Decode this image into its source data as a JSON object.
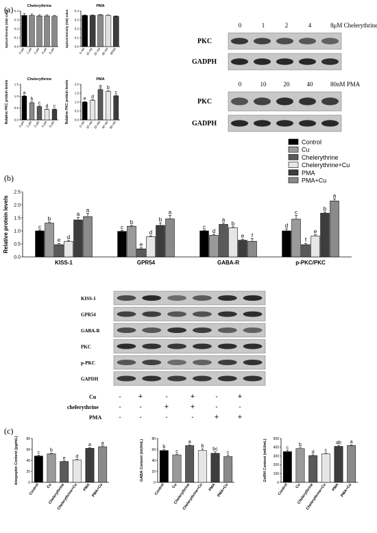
{
  "panel_labels": {
    "a": "(a)",
    "b": "(b)",
    "c": "(c)"
  },
  "colors": {
    "Control": "#000000",
    "Cu": "#9a9a9a",
    "Chelerythrine": "#5a5a5a",
    "Chelerythrine+Cu": "#e6e6e6",
    "PMA": "#3d3d3d",
    "PMA+Cu": "#8a8a8a"
  },
  "blots": {
    "chelerythrine": {
      "doses": [
        "0",
        "1",
        "2",
        "4",
        "8μM Chelerythrine"
      ],
      "rows": [
        "PKC",
        "GADPH"
      ]
    },
    "pma": {
      "doses": [
        "0",
        "10",
        "20",
        "40",
        "80nM PMA"
      ],
      "rows": [
        "PKC",
        "GADPH"
      ]
    },
    "b_rows": [
      "KISS-1",
      "GPR54",
      "GABA-R",
      "PKC",
      "p-PKC",
      "GAPDH"
    ],
    "treatment_table": {
      "rows": [
        {
          "label": "Cu",
          "signs": [
            "-",
            "+",
            "-",
            "+",
            "-",
            "+"
          ]
        },
        {
          "label": "chelerythrine",
          "signs": [
            "-",
            "-",
            "+",
            "+",
            "-",
            "-"
          ]
        },
        {
          "label": "PMA",
          "signs": [
            "-",
            "-",
            "-",
            "-",
            "+",
            "+"
          ]
        }
      ]
    }
  },
  "chart_data": [
    {
      "id": "a1",
      "type": "bar",
      "title": "Chelerythrine",
      "ylabel": "Optical Density (OD) value",
      "categories": [
        "0 μM",
        "1 μM",
        "2 μM",
        "4 μM",
        "8 μM"
      ],
      "values": [
        0.35,
        0.35,
        0.345,
        0.345,
        0.34
      ],
      "errors": [
        0.02,
        0.015,
        0.01,
        0.01,
        0.01
      ],
      "colors": [
        "#000000",
        "#8a8a8a",
        "#8a8a8a",
        "#8a8a8a",
        "#8a8a8a"
      ],
      "ylim": [
        0,
        0.4
      ],
      "yticks": [
        "0.0",
        "0.1",
        "0.2",
        "0.3",
        "0.4"
      ],
      "yticks_val": [
        0,
        0.1,
        0.2,
        0.3,
        0.4
      ],
      "letters": []
    },
    {
      "id": "a2",
      "type": "bar",
      "title": "PMA",
      "ylabel": "Optical Density (OD) value",
      "categories": [
        "0 nM",
        "10 nM",
        "20 nM",
        "40 nM",
        "80nM"
      ],
      "values": [
        0.35,
        0.35,
        0.355,
        0.35,
        0.34
      ],
      "errors": [
        0.005,
        0.005,
        0.005,
        0.005,
        0.005
      ],
      "colors": [
        "#000000",
        "#3d3d3d",
        "#8a8a8a",
        "#e0e0e0",
        "#3d3d3d"
      ],
      "ylim": [
        0,
        0.4
      ],
      "yticks": [
        "0.0",
        "0.1",
        "0.2",
        "0.3",
        "0.4"
      ],
      "yticks_val": [
        0,
        0.1,
        0.2,
        0.3,
        0.4
      ],
      "letters": []
    },
    {
      "id": "a3",
      "type": "bar",
      "title": "Chelerythrine",
      "ylabel": "Relative PKC protein levels",
      "categories": [
        "0 μM",
        "1 μM",
        "2 μM",
        "4 μM",
        "8 μM"
      ],
      "values": [
        1.0,
        0.72,
        0.56,
        0.44,
        0.44
      ],
      "errors": [
        0.03,
        0.04,
        0.03,
        0.02,
        0.02
      ],
      "colors": [
        "#000000",
        "#8a8a8a",
        "#5a5a5a",
        "#e6e6e6",
        "#3d3d3d"
      ],
      "ylim": [
        0,
        1.5
      ],
      "yticks": [
        "0.0",
        "0.5",
        "1.0",
        "1.5"
      ],
      "yticks_val": [
        0,
        0.5,
        1.0,
        1.5
      ],
      "letters": [
        "a",
        "b",
        "c",
        "d",
        "c"
      ]
    },
    {
      "id": "a4",
      "type": "bar",
      "title": "PMA",
      "ylabel": "Relative PKC protein levels",
      "categories": [
        "0 nM",
        "10 nM",
        "20 nM",
        "40 nM",
        "80 nM"
      ],
      "values": [
        1.0,
        1.1,
        1.7,
        1.6,
        1.35
      ],
      "errors": [
        0.03,
        0.04,
        0.04,
        0.05,
        0.04
      ],
      "colors": [
        "#000000",
        "#e6e6e6",
        "#5a5a5a",
        "#e6e6e6",
        "#3d3d3d"
      ],
      "ylim": [
        0,
        2.0
      ],
      "yticks": [
        "0.0",
        "0.5",
        "1.0",
        "1.5",
        "2.0"
      ],
      "yticks_val": [
        0,
        0.5,
        1.0,
        1.5,
        2.0
      ],
      "letters": [
        "e",
        "d",
        "a",
        "b",
        "c"
      ]
    },
    {
      "id": "b",
      "type": "bar",
      "ylabel": "Relative protein levels",
      "categories": [
        "KISS-1",
        "GPR54",
        "GABA-R",
        "p-PKC/PKC"
      ],
      "ylim": [
        0,
        2.5
      ],
      "yticks": [
        "0.0",
        "0.5",
        "1.0",
        "1.5",
        "2.0",
        "2.5"
      ],
      "yticks_val": [
        0,
        0.5,
        1.0,
        1.5,
        2.0,
        2.5
      ],
      "legend": [
        "Control",
        "Cu",
        "Chelerythrine",
        "Chelerythrine+Cu",
        "PMA",
        "PMA+Cu"
      ],
      "legend_position": "top-right",
      "series": [
        {
          "name": "Control",
          "values": [
            1.0,
            0.98,
            1.0,
            1.0
          ],
          "errors": [
            0.03,
            0.03,
            0.03,
            0.08
          ]
        },
        {
          "name": "Cu",
          "values": [
            1.3,
            1.18,
            0.83,
            1.45
          ],
          "errors": [
            0.04,
            0.03,
            0.04,
            0.14
          ]
        },
        {
          "name": "Chelerythrine",
          "values": [
            0.47,
            0.31,
            1.25,
            0.47
          ],
          "errors": [
            0.05,
            0.04,
            0.05,
            0.05
          ]
        },
        {
          "name": "Chelerythrine+Cu",
          "values": [
            0.6,
            0.78,
            1.12,
            0.8
          ],
          "errors": [
            0.03,
            0.03,
            0.04,
            0.05
          ]
        },
        {
          "name": "PMA",
          "values": [
            1.42,
            1.21,
            0.64,
            1.68
          ],
          "errors": [
            0.1,
            0.1,
            0.04,
            0.04
          ]
        },
        {
          "name": "PMA+Cu",
          "values": [
            1.55,
            1.46,
            0.6,
            2.15
          ],
          "errors": [
            0.12,
            0.13,
            0.1,
            0.08
          ]
        }
      ],
      "letters": [
        [
          "c",
          "b",
          "e",
          "d",
          "a",
          "a"
        ],
        [
          "c",
          "b",
          "e",
          "d",
          "b",
          "a"
        ],
        [
          "c",
          "d",
          "a",
          "b",
          "e",
          "f"
        ],
        [
          "d",
          "c",
          "f",
          "e",
          "b",
          "a"
        ]
      ]
    },
    {
      "id": "c1",
      "type": "bar",
      "ylabel": "kisspeptin Content (pg/mL)",
      "categories": [
        "Control",
        "Cu",
        "Chelerythrine",
        "Chelerythrine+Cu",
        "PMA",
        "PMA+Cu"
      ],
      "values": [
        48,
        52,
        38,
        41,
        62,
        65
      ],
      "errors": [
        1.5,
        1.5,
        1,
        1,
        1.5,
        1.5
      ],
      "ylim": [
        0,
        80
      ],
      "yticks": [
        "0",
        "20",
        "40",
        "60",
        "80"
      ],
      "yticks_val": [
        0,
        20,
        40,
        60,
        80
      ],
      "letters": [
        "c",
        "b",
        "e",
        "d",
        "a",
        "a"
      ]
    },
    {
      "id": "c2",
      "type": "bar",
      "ylabel": "GABA Content (mU/mL)",
      "categories": [
        "Control",
        "Cu",
        "Chelerythrine",
        "Chelerythrine+Cu",
        "PMA",
        "PMA+Cu"
      ],
      "values": [
        58,
        50,
        67,
        58,
        53,
        47
      ],
      "errors": [
        2,
        1.5,
        1.5,
        3,
        2.5,
        2.5
      ],
      "ylim": [
        0,
        80
      ],
      "yticks": [
        "0",
        "20",
        "40",
        "60",
        "80"
      ],
      "yticks_val": [
        0,
        20,
        40,
        60,
        80
      ],
      "letters": [
        "b",
        "c",
        "a",
        "b",
        "bc",
        "c"
      ]
    },
    {
      "id": "c3",
      "type": "bar",
      "ylabel": "GnRH Content (mIU/mL)",
      "categories": [
        "Control",
        "Cu",
        "Chelerythrine",
        "Chelerythrine+Cu",
        "PMA",
        "PMA+Cu"
      ],
      "values": [
        350,
        385,
        305,
        325,
        410,
        420
      ],
      "errors": [
        15,
        15,
        8,
        8,
        12,
        8
      ],
      "ylim": [
        0,
        500
      ],
      "yticks": [
        "0",
        "100",
        "200",
        "300",
        "400",
        "500"
      ],
      "yticks_val": [
        0,
        100,
        200,
        300,
        400,
        500
      ],
      "letters": [
        "c",
        "b",
        "d",
        "c",
        "ab",
        "a"
      ]
    }
  ]
}
